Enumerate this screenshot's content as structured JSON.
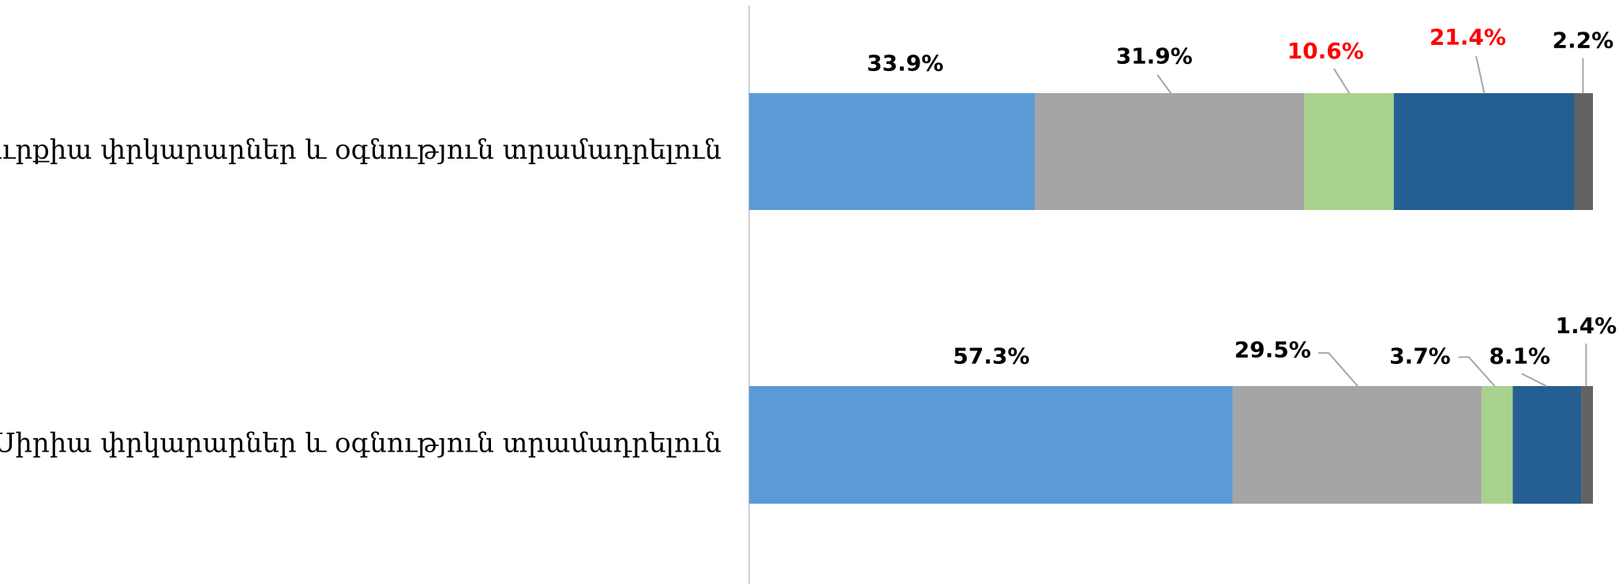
{
  "chart_data": {
    "type": "stacked-barh",
    "categories": [
      "Թուրքիա փրկարարներ և օգնություն տրամադրելուն",
      "Սիրիա փրկարարներ և օգնություն տրամադրելուն"
    ],
    "series": [
      {
        "color": "#5b9bd5",
        "values": [
          33.9,
          57.3
        ],
        "value_labels": [
          "33.9%",
          "57.3%"
        ],
        "value_label_colors": [
          "#000000",
          "#000000"
        ]
      },
      {
        "color": "#a5a5a5",
        "values": [
          31.9,
          29.5
        ],
        "value_labels": [
          "31.9%",
          "29.5%"
        ],
        "value_label_colors": [
          "#000000",
          "#000000"
        ]
      },
      {
        "color": "#a9d18e",
        "values": [
          10.6,
          3.7
        ],
        "value_labels": [
          "10.6%",
          "3.7%"
        ],
        "value_label_colors": [
          "#ff0000",
          "#000000"
        ]
      },
      {
        "color": "#255e91",
        "values": [
          21.4,
          8.1
        ],
        "value_labels": [
          "21.4%",
          "8.1%"
        ],
        "value_label_colors": [
          "#ff0000",
          "#000000"
        ]
      },
      {
        "color": "#636363",
        "values": [
          2.2,
          1.4
        ],
        "value_labels": [
          "2.2%",
          "1.4%"
        ],
        "value_label_colors": [
          "#000000",
          "#000000"
        ]
      }
    ]
  }
}
